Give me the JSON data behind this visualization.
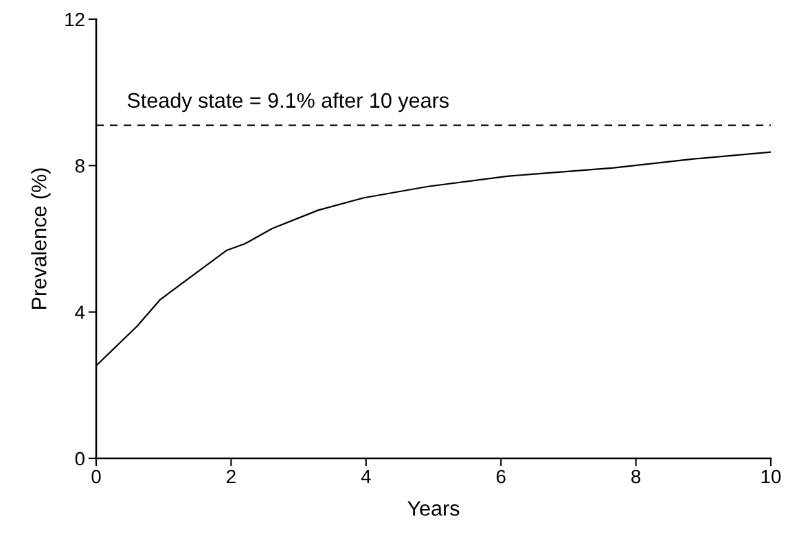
{
  "chart_data": {
    "type": "line",
    "xlabel": "Years",
    "ylabel": "Prevalence (%)",
    "series": [
      {
        "color": "#000000",
        "x": [
          0,
          0.61,
          0.95,
          1.93,
          2.21,
          2.61,
          3.29,
          3.97,
          4.92,
          6.09,
          7.67,
          8.9,
          10
        ],
        "values": [
          2.53,
          3.62,
          4.34,
          5.68,
          5.87,
          6.28,
          6.78,
          7.12,
          7.43,
          7.71,
          7.94,
          8.19,
          8.37
        ]
      }
    ],
    "xlim": [
      0,
      10
    ],
    "xticks": [
      0,
      2,
      4,
      6,
      8,
      10
    ],
    "ylim": [
      0,
      12
    ],
    "yticks": [
      0,
      4,
      8,
      12
    ],
    "ref_lines": [
      {
        "axis": "y",
        "value": 9.1,
        "label": "Steady state = 9.1% after 10 years",
        "color": "#000000",
        "line_style": "dashed"
      }
    ],
    "grid": false,
    "legend": false,
    "marker": "none",
    "line_style": "solid"
  }
}
